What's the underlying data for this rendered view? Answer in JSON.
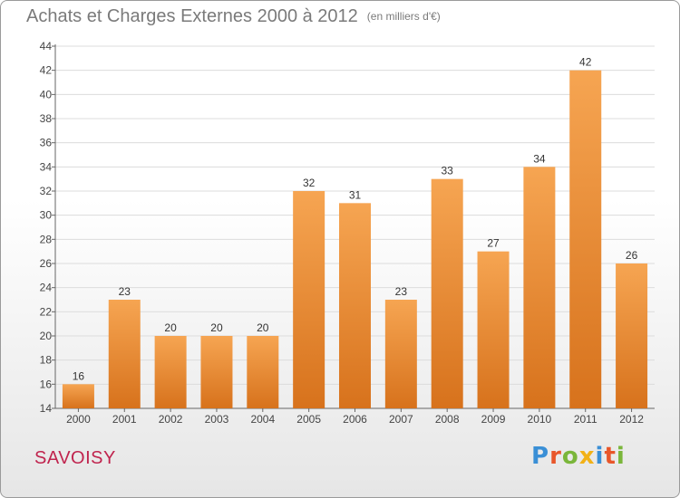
{
  "header": {
    "title": "Achats et Charges Externes 2000 à 2012",
    "subtitle": "(en milliers d'€)"
  },
  "footer": {
    "city": "SAVOISY",
    "logo": "Proxiti"
  },
  "colors": {
    "bar_top": "#f6a552",
    "bar_bottom": "#d7721c",
    "city": "#c0244e"
  },
  "chart_data": {
    "type": "bar",
    "title": "Achats et Charges Externes 2000 à 2012",
    "subtitle": "(en milliers d'€)",
    "categories": [
      "2000",
      "2001",
      "2002",
      "2003",
      "2004",
      "2005",
      "2006",
      "2007",
      "2008",
      "2009",
      "2010",
      "2011",
      "2012"
    ],
    "values": [
      16,
      23,
      20,
      20,
      20,
      32,
      31,
      23,
      33,
      27,
      34,
      42,
      26
    ],
    "ylim": [
      14,
      44
    ],
    "yticks": [
      14,
      16,
      18,
      20,
      22,
      24,
      26,
      28,
      30,
      32,
      34,
      36,
      38,
      40,
      42,
      44
    ],
    "grid": true
  }
}
